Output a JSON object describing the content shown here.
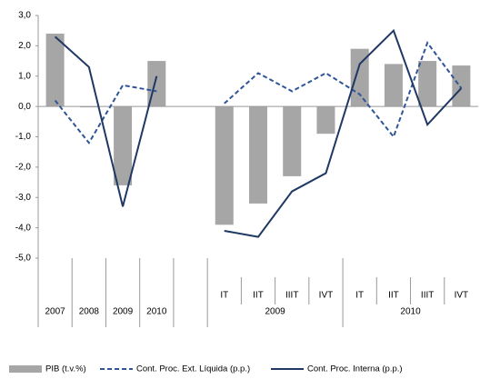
{
  "chart_data": {
    "type": "bar_line",
    "categories": [
      "2007",
      "2008",
      "2009",
      "2010",
      null,
      "IT",
      "IIT",
      "IIIT",
      "IVT",
      "IT",
      "IIT",
      "IIIT",
      "IVT"
    ],
    "category_groups": [
      "2009",
      "2010"
    ],
    "series": [
      {
        "name": "PIB (t.v.%)",
        "kind": "bar",
        "color": "#a6a6a6",
        "values": [
          2.4,
          0.0,
          -2.6,
          1.5,
          null,
          -3.9,
          -3.2,
          -2.3,
          -0.9,
          1.9,
          1.4,
          1.5,
          1.35
        ]
      },
      {
        "name": "Cont. Proc. Ext. Líquida (p.p.)",
        "kind": "dashed",
        "color": "#2f5597",
        "values": [
          0.2,
          -1.2,
          0.7,
          0.5,
          null,
          0.1,
          1.1,
          0.5,
          1.1,
          0.4,
          -1.0,
          2.1,
          0.6
        ]
      },
      {
        "name": "Cont. Proc. Interna (p.p.)",
        "kind": "line",
        "color": "#1f3864",
        "values": [
          2.3,
          1.3,
          -3.3,
          1.0,
          null,
          -4.1,
          -4.3,
          -2.8,
          -2.2,
          1.4,
          2.5,
          -0.6,
          0.6
        ]
      }
    ],
    "ylim": [
      -5,
      3
    ],
    "yticks": [
      {
        "value": 3,
        "label": "3,0"
      },
      {
        "value": 2,
        "label": "2,0"
      },
      {
        "value": 1,
        "label": "1,0"
      },
      {
        "value": 0,
        "label": "0,0"
      },
      {
        "value": -1,
        "label": "-1,0"
      },
      {
        "value": -2,
        "label": "-2,0"
      },
      {
        "value": -3,
        "label": "-3,0"
      },
      {
        "value": -4,
        "label": "-4,0"
      },
      {
        "value": -5,
        "label": "-5,0"
      }
    ]
  }
}
